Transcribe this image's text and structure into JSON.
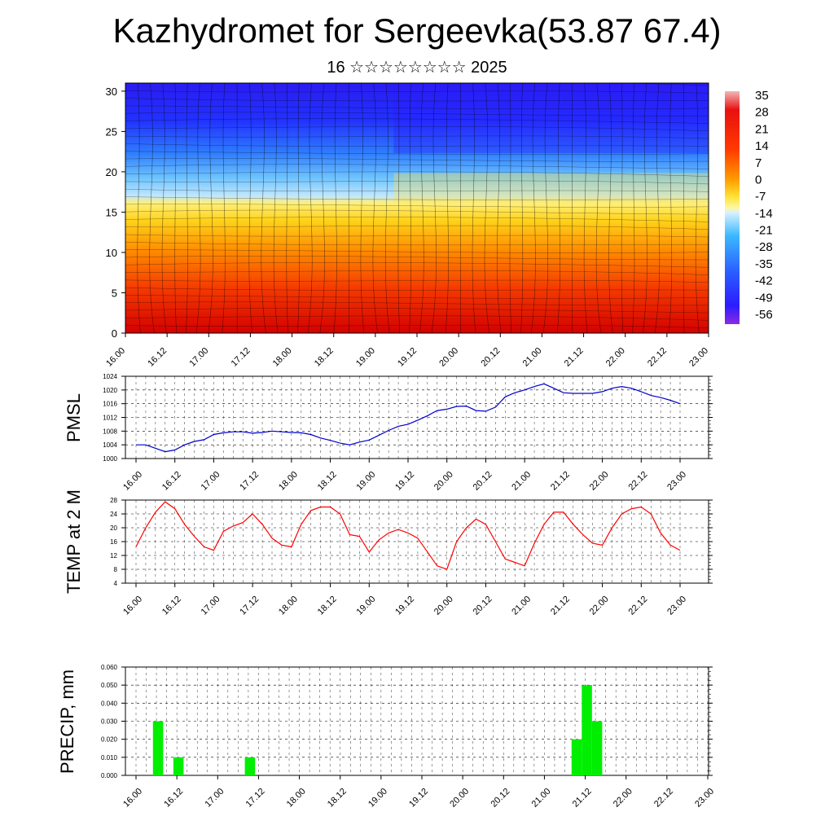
{
  "header": {
    "title": "Kazhydromet for Sergeevka(53.87 67.4)",
    "subtitle": "16 ☆☆☆☆☆☆☆☆ 2025"
  },
  "chart_data": [
    {
      "type": "heatmap",
      "title": "",
      "xlabel": "",
      "ylabel": "",
      "x_ticks": [
        "16.00",
        "16.12",
        "17.00",
        "17.12",
        "18.00",
        "18.12",
        "19.00",
        "19.12",
        "20.00",
        "20.12",
        "21.00",
        "21.12",
        "22.00",
        "22.12",
        "23.00"
      ],
      "y_ticks": [
        0,
        5,
        10,
        15,
        20,
        25,
        30
      ],
      "ylim": [
        0,
        31
      ],
      "colorbar_labels": [
        35,
        28,
        21,
        14,
        7,
        0,
        -7,
        -14,
        -21,
        -28,
        -35,
        -42,
        -49,
        -56
      ],
      "colors": {
        "warm": "#d7191c",
        "cool": "#2c1bff"
      }
    },
    {
      "type": "line",
      "ylabel": "PMSL",
      "x_ticks": [
        "16.00",
        "16.12",
        "17.00",
        "17.12",
        "18.00",
        "18.12",
        "19.00",
        "19.12",
        "20.00",
        "20.12",
        "21.00",
        "21.12",
        "22.00",
        "22.12",
        "23.00"
      ],
      "y_ticks": [
        1000,
        1004,
        1008,
        1012,
        1016,
        1020,
        1024
      ],
      "ylim": [
        1000,
        1024
      ],
      "color": "#0000cc",
      "x": [
        0,
        1,
        2,
        3,
        4,
        5,
        6,
        7,
        8,
        9,
        10,
        11,
        12,
        13,
        14,
        15,
        16,
        17,
        18,
        19,
        20,
        21,
        22,
        23,
        24,
        25,
        26,
        27,
        28,
        29,
        30,
        31,
        32,
        33,
        34,
        35,
        36,
        37,
        38,
        39,
        40,
        41,
        42,
        43,
        44,
        45,
        46,
        47,
        48,
        49,
        50,
        51,
        52,
        53,
        54,
        55,
        56
      ],
      "values": [
        1004,
        1004,
        1003,
        1002,
        1002.5,
        1004,
        1005,
        1005.5,
        1007,
        1007.5,
        1007.8,
        1007.8,
        1007.4,
        1007.6,
        1008,
        1007.8,
        1007.6,
        1007.5,
        1007,
        1006,
        1005.3,
        1004.5,
        1004,
        1004.8,
        1005.4,
        1006.8,
        1008.2,
        1009.4,
        1010,
        1011.2,
        1012.5,
        1014,
        1014.4,
        1015.2,
        1015.3,
        1014,
        1013.8,
        1015,
        1018,
        1019.2,
        1020,
        1021,
        1021.8,
        1020.5,
        1019.2,
        1019,
        1019,
        1019,
        1019.5,
        1020.5,
        1021,
        1020.5,
        1019.5,
        1018.4,
        1017.8,
        1017,
        1016
      ]
    },
    {
      "type": "line",
      "ylabel": "TEMP at 2 M",
      "x_ticks": [
        "16.00",
        "16.12",
        "17.00",
        "17.12",
        "18.00",
        "18.12",
        "19.00",
        "19.12",
        "20.00",
        "20.12",
        "21.00",
        "21.12",
        "22.00",
        "22.12",
        "23.00"
      ],
      "y_ticks": [
        4,
        8,
        12,
        16,
        20,
        24,
        28
      ],
      "ylim": [
        4,
        28
      ],
      "color": "#ff0000",
      "x": [
        0,
        1,
        2,
        3,
        4,
        5,
        6,
        7,
        8,
        9,
        10,
        11,
        12,
        13,
        14,
        15,
        16,
        17,
        18,
        19,
        20,
        21,
        22,
        23,
        24,
        25,
        26,
        27,
        28,
        29,
        30,
        31,
        32,
        33,
        34,
        35,
        36,
        37,
        38,
        39,
        40,
        41,
        42,
        43,
        44,
        45,
        46,
        47,
        48,
        49,
        50,
        51,
        52,
        53,
        54,
        55,
        56
      ],
      "values": [
        14.5,
        20,
        24.5,
        27.5,
        25.5,
        21,
        17.5,
        14.5,
        13.5,
        19,
        20.5,
        21.5,
        24,
        21,
        17,
        15,
        14.5,
        21,
        25,
        26,
        26,
        24,
        18,
        17.5,
        13,
        16.5,
        18.5,
        19.5,
        18.5,
        17,
        13,
        9,
        8,
        16,
        20,
        22.5,
        21,
        16,
        11,
        10,
        9,
        15.5,
        21,
        24.5,
        24.5,
        21,
        18,
        15.5,
        15,
        20,
        24,
        25.5,
        26,
        24,
        18.5,
        15,
        13.5
      ]
    },
    {
      "type": "bar",
      "ylabel": "PRECIP, mm",
      "x_ticks": [
        "16.00",
        "16.12",
        "17.00",
        "17.12",
        "18.00",
        "18.12",
        "19.00",
        "19.12",
        "20.00",
        "20.12",
        "21.00",
        "21.12",
        "22.00",
        "22.12",
        "23.00"
      ],
      "y_ticks": [
        "0.000",
        "0.010",
        "0.020",
        "0.030",
        "0.040",
        "0.050",
        "0.060"
      ],
      "ylim": [
        0,
        0.06
      ],
      "color": "#00ee00",
      "bars": [
        {
          "x": 2,
          "value": 0.03
        },
        {
          "x": 4,
          "value": 0.01
        },
        {
          "x": 11,
          "value": 0.01
        },
        {
          "x": 43,
          "value": 0.02
        },
        {
          "x": 44,
          "value": 0.05
        },
        {
          "x": 45,
          "value": 0.03
        }
      ]
    }
  ]
}
